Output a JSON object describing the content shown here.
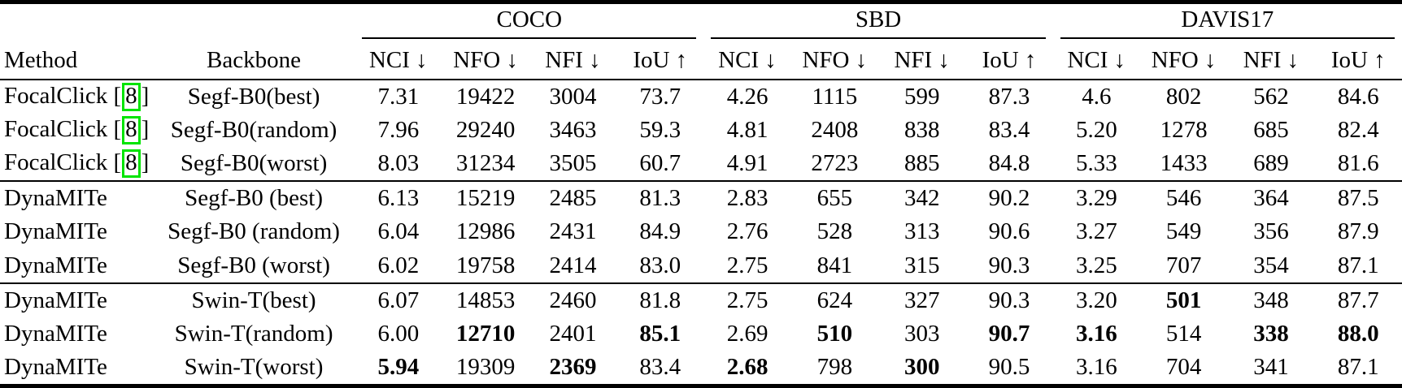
{
  "table": {
    "headers": {
      "method": "Method",
      "backbone": "Backbone"
    },
    "groups": [
      "COCO",
      "SBD",
      "DAVIS17"
    ],
    "metric_headers": [
      "NCI ↓",
      "NFO ↓",
      "NFI ↓",
      "IoU ↑"
    ],
    "rows": [
      {
        "section": 0,
        "method_pre": "FocalClick [",
        "cite": "8",
        "method_post": "]",
        "backbone": "Segf-B0(best)",
        "values": [
          "7.31",
          "19422",
          "3004",
          "73.7",
          "4.26",
          "1115",
          "599",
          "87.3",
          "4.6",
          "802",
          "562",
          "84.6"
        ],
        "bold": []
      },
      {
        "section": 0,
        "method_pre": "FocalClick [",
        "cite": "8",
        "method_post": "]",
        "backbone": "Segf-B0(random)",
        "values": [
          "7.96",
          "29240",
          "3463",
          "59.3",
          "4.81",
          "2408",
          "838",
          "83.4",
          "5.20",
          "1278",
          "685",
          "82.4"
        ],
        "bold": []
      },
      {
        "section": 0,
        "method_pre": "FocalClick [",
        "cite": "8",
        "method_post": "]",
        "backbone": "Segf-B0(worst)",
        "values": [
          "8.03",
          "31234",
          "3505",
          "60.7",
          "4.91",
          "2723",
          "885",
          "84.8",
          "5.33",
          "1433",
          "689",
          "81.6"
        ],
        "bold": []
      },
      {
        "section": 1,
        "method_pre": "DynaMITe",
        "cite": "",
        "method_post": "",
        "backbone": "Segf-B0 (best)",
        "values": [
          "6.13",
          "15219",
          "2485",
          "81.3",
          "2.83",
          "655",
          "342",
          "90.2",
          "3.29",
          "546",
          "364",
          "87.5"
        ],
        "bold": []
      },
      {
        "section": 1,
        "method_pre": "DynaMITe",
        "cite": "",
        "method_post": "",
        "backbone": "Segf-B0 (random)",
        "values": [
          "6.04",
          "12986",
          "2431",
          "84.9",
          "2.76",
          "528",
          "313",
          "90.6",
          "3.27",
          "549",
          "356",
          "87.9"
        ],
        "bold": []
      },
      {
        "section": 1,
        "method_pre": "DynaMITe",
        "cite": "",
        "method_post": "",
        "backbone": "Segf-B0 (worst)",
        "values": [
          "6.02",
          "19758",
          "2414",
          "83.0",
          "2.75",
          "841",
          "315",
          "90.3",
          "3.25",
          "707",
          "354",
          "87.1"
        ],
        "bold": []
      },
      {
        "section": 2,
        "method_pre": "DynaMITe",
        "cite": "",
        "method_post": "",
        "backbone": "Swin-T(best)",
        "values": [
          "6.07",
          "14853",
          "2460",
          "81.8",
          "2.75",
          "624",
          "327",
          "90.3",
          "3.20",
          "501",
          "348",
          "87.7"
        ],
        "bold": [
          9
        ]
      },
      {
        "section": 2,
        "method_pre": "DynaMITe",
        "cite": "",
        "method_post": "",
        "backbone": "Swin-T(random)",
        "values": [
          "6.00",
          "12710",
          "2401",
          "85.1",
          "2.69",
          "510",
          "303",
          "90.7",
          "3.16",
          "514",
          "338",
          "88.0"
        ],
        "bold": [
          1,
          3,
          5,
          7,
          8,
          10,
          11
        ]
      },
      {
        "section": 2,
        "method_pre": "DynaMITe",
        "cite": "",
        "method_post": "",
        "backbone": "Swin-T(worst)",
        "values": [
          "5.94",
          "19309",
          "2369",
          "83.4",
          "2.68",
          "798",
          "300",
          "90.5",
          "3.16",
          "704",
          "341",
          "87.1"
        ],
        "bold": [
          0,
          2,
          4,
          6
        ]
      }
    ],
    "colors": {
      "citation_box": "#00e400",
      "text": "#000000",
      "background": "#ffffff"
    }
  }
}
